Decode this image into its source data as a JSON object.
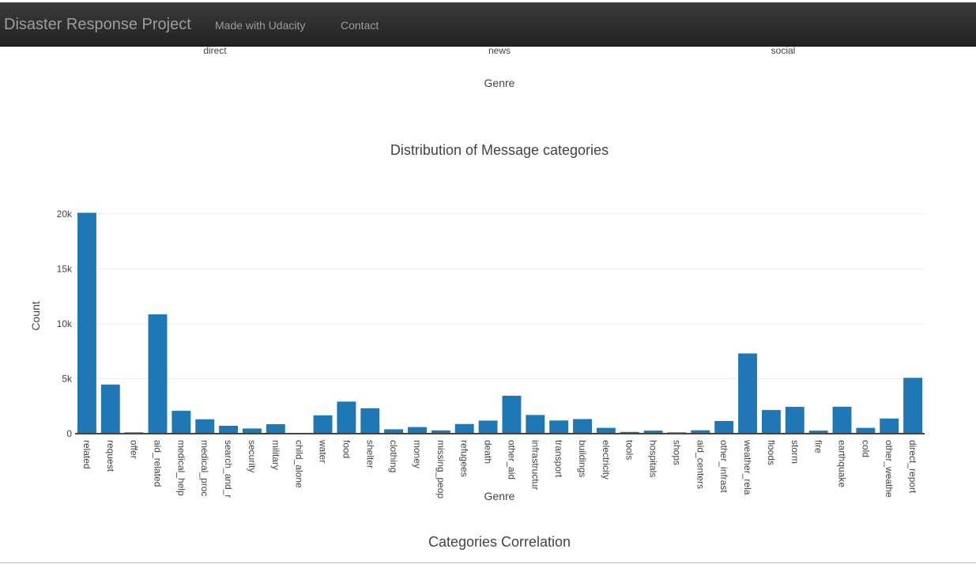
{
  "navbar": {
    "brand": "Disaster Response Project",
    "links": [
      "Made with Udacity",
      "Contact"
    ]
  },
  "previous_chart": {
    "tick_labels": [
      "direct",
      "news",
      "social"
    ],
    "xlabel": "Genre"
  },
  "next_chart": {
    "title": "Categories Correlation"
  },
  "chart_data": {
    "type": "bar",
    "title": "Distribution of Message categories",
    "xlabel": "Genre",
    "ylabel": "Count",
    "ylim": [
      0,
      20200
    ],
    "yticks": [
      0,
      5000,
      10000,
      15000,
      20000
    ],
    "ytick_labels": [
      "0",
      "5k",
      "10k",
      "15k",
      "20k"
    ],
    "color": "#1f77b4",
    "categories": [
      "related",
      "request",
      "offer",
      "aid_related",
      "medical_help",
      "medical_proc",
      "search_and_r",
      "security",
      "military",
      "child_alone",
      "water",
      "food",
      "shelter",
      "clothing",
      "money",
      "missing_peop",
      "refugees",
      "death",
      "other_aid",
      "infrastructure",
      "transport",
      "buildings",
      "electricity",
      "tools",
      "hospitals",
      "shops",
      "aid_centers",
      "other_infrast",
      "weather_rela",
      "floods",
      "storm",
      "fire",
      "earthquake",
      "cold",
      "other_weathe",
      "direct_report"
    ],
    "values": [
      20100,
      4470,
      120,
      10860,
      2080,
      1310,
      720,
      470,
      860,
      0,
      1670,
      2920,
      2310,
      400,
      600,
      300,
      880,
      1190,
      3450,
      1700,
      1200,
      1330,
      530,
      160,
      280,
      120,
      310,
      1150,
      7300,
      2150,
      2440,
      280,
      2450,
      530,
      1380,
      5080
    ]
  }
}
